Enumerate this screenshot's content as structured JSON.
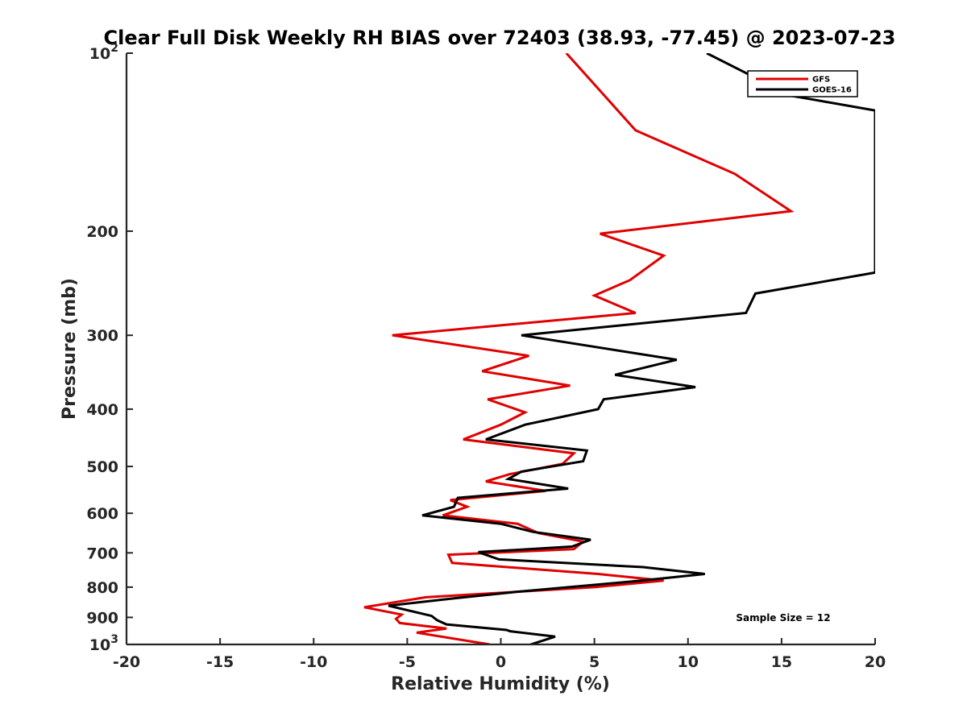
{
  "chart_data": {
    "type": "line",
    "title": "Clear Full Disk Weekly RH BIAS over 72403 (38.93, -77.45) @ 2023-07-23",
    "xlabel": "Relative Humidity (%)",
    "ylabel": "Pressure (mb)",
    "xlim": [
      -20,
      20
    ],
    "ylim": [
      1000,
      100
    ],
    "y_scale": "log",
    "y_reversed": true,
    "grid": false,
    "legend_position": "top-right",
    "x_ticks": [
      "-20",
      "-15",
      "-10",
      "-5",
      "0",
      "5",
      "10",
      "15",
      "20"
    ],
    "y_ticks": [
      {
        "value": 100,
        "base": "10",
        "exp": "2"
      },
      {
        "value": 200,
        "label": "200"
      },
      {
        "value": 300,
        "label": "300"
      },
      {
        "value": 400,
        "label": "400"
      },
      {
        "value": 500,
        "label": "500"
      },
      {
        "value": 600,
        "label": "600"
      },
      {
        "value": 700,
        "label": "700"
      },
      {
        "value": 800,
        "label": "800"
      },
      {
        "value": 900,
        "label": "900"
      },
      {
        "value": 1000,
        "base": "10",
        "exp": "3"
      }
    ],
    "series": [
      {
        "name": "GFS",
        "color": "#e00000",
        "points": [
          [
            3.5,
            100
          ],
          [
            7.2,
            135
          ],
          [
            12.5,
            160
          ],
          [
            15.5,
            185
          ],
          [
            5.3,
            202
          ],
          [
            8.7,
            220
          ],
          [
            6.9,
            242
          ],
          [
            5.0,
            257
          ],
          [
            7.2,
            275
          ],
          [
            -5.8,
            300
          ],
          [
            1.5,
            325
          ],
          [
            -1.0,
            345
          ],
          [
            3.7,
            365
          ],
          [
            -0.7,
            385
          ],
          [
            1.3,
            405
          ],
          [
            0.0,
            425
          ],
          [
            -2.0,
            450
          ],
          [
            3.9,
            475
          ],
          [
            3.3,
            495
          ],
          [
            0.5,
            515
          ],
          [
            -0.8,
            530
          ],
          [
            2.4,
            550
          ],
          [
            -2.7,
            570
          ],
          [
            -1.8,
            585
          ],
          [
            -3.1,
            605
          ],
          [
            0.9,
            625
          ],
          [
            2.0,
            648
          ],
          [
            4.4,
            670
          ],
          [
            3.9,
            690
          ],
          [
            -2.8,
            705
          ],
          [
            -2.6,
            728
          ],
          [
            5.2,
            760
          ],
          [
            8.7,
            780
          ],
          [
            5.0,
            800
          ],
          [
            -4.0,
            832
          ],
          [
            -7.3,
            865
          ],
          [
            -5.3,
            890
          ],
          [
            -5.6,
            905
          ],
          [
            -5.4,
            920
          ],
          [
            -2.9,
            940
          ],
          [
            -4.5,
            955
          ],
          [
            -0.6,
            1000
          ]
        ]
      },
      {
        "name": "GOES-16",
        "color": "#000000",
        "points": [
          [
            11.0,
            100
          ],
          [
            15.5,
            118
          ],
          [
            20.0,
            125
          ],
          [
            20.0,
            235
          ],
          [
            13.6,
            255
          ],
          [
            13.1,
            275
          ],
          [
            1.1,
            300
          ],
          [
            9.4,
            330
          ],
          [
            6.1,
            350
          ],
          [
            10.4,
            367
          ],
          [
            5.5,
            385
          ],
          [
            5.2,
            400
          ],
          [
            1.3,
            425
          ],
          [
            -0.8,
            450
          ],
          [
            4.6,
            470
          ],
          [
            4.4,
            490
          ],
          [
            1.1,
            510
          ],
          [
            0.4,
            525
          ],
          [
            3.6,
            545
          ],
          [
            -2.3,
            565
          ],
          [
            -2.5,
            585
          ],
          [
            -4.2,
            605
          ],
          [
            0.0,
            625
          ],
          [
            1.7,
            645
          ],
          [
            4.8,
            665
          ],
          [
            3.8,
            683
          ],
          [
            -1.2,
            698
          ],
          [
            -0.1,
            718
          ],
          [
            7.6,
            740
          ],
          [
            10.9,
            760
          ],
          [
            7.5,
            780
          ],
          [
            0.8,
            815
          ],
          [
            -2.4,
            835
          ],
          [
            -6.0,
            860
          ],
          [
            -3.7,
            895
          ],
          [
            -3.4,
            910
          ],
          [
            -2.9,
            925
          ],
          [
            0.3,
            945
          ],
          [
            0.5,
            950
          ],
          [
            2.9,
            970
          ],
          [
            1.6,
            1000
          ]
        ]
      }
    ],
    "annotations": [
      {
        "text": "Sample Size = 12"
      }
    ]
  }
}
